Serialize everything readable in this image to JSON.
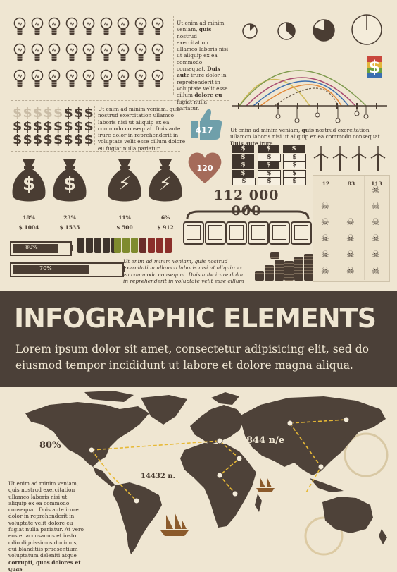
{
  "colors": {
    "paper": "#efe6d2",
    "ink": "#4a3d33",
    "banner": "#4b4038",
    "accent_green": "#7f9b4f",
    "heart": "#a56b5a",
    "route": "#e7b936"
  },
  "text_top_right": {
    "p1": "Ut enim ad minim veniam, ",
    "b1": "quis",
    "p2": " nostrud exercitation ullamco laboris nisi ut aliquip ex ea commodo consequat. ",
    "b2": "Duis aute",
    "p3": " irure dolor in reprehenderit in voluptate velit esse cillum ",
    "b3": "dolore eu",
    "p4": " fugiat nulla pariatur."
  },
  "text_dollars": "Ut enim ad minim veniam, quis nostrud exercitation ullamco laboris nisi ut aliquip ex ea commodo consequat. Duis aute irure dolor in reprehenderit in voluptate velit esse cillum dolore eu fugiat nulla pariatur.",
  "text_mid_right": {
    "p1": "Ut enim ad minim veniam, ",
    "b1": "quis",
    "p2": " nostrud exercitation ullamco laboris nisi ut aliquip ex ea commodo consequat. ",
    "b2": "Duis aute",
    "p3": " irure"
  },
  "text_italic": "Ut enim ad minim veniam, quis nostrud exercitation ullamco laboris nisi ut aliquip ex ea commodo consequat. Duis aute irure dolor in reprehenderit in voluptate velit esse cillum",
  "thumb_value": "417",
  "heart_value": "120",
  "big_number": "112 000 000",
  "bags": [
    {
      "pct": "18%",
      "amount": "$ 1004",
      "symbol": "$"
    },
    {
      "pct": "23%",
      "amount": "$ 1535",
      "symbol": "$"
    },
    {
      "pct": "11%",
      "amount": "$ 500",
      "symbol": "⚡"
    },
    {
      "pct": "6%",
      "amount": "$ 912",
      "symbol": "⚡"
    }
  ],
  "batteries": [
    {
      "label": "80%",
      "level": 0.8
    },
    {
      "label": "70%",
      "level": 0.7
    }
  ],
  "skull_columns": [
    "12",
    "83",
    "113"
  ],
  "dollar_icon": "$",
  "banner": {
    "title": "INFOGRAPHIC ELEMENTS",
    "subtitle": "Lorem ipsum dolor sit amet, consectetur adipisicing elit, sed do eiusmod tempor incididunt ut labore et dolore magna aliqua."
  },
  "map": {
    "label_left": "80%",
    "label_europe": "844 n/e",
    "label_south": "14432 n.",
    "side_text": {
      "p1": "Ut enim ad minim veniam, quis nostrud exercitation ullamco laboris nisi ut aliquip ex ea commodo consequat. Duis aute irure dolor in reprehenderit in voluptate velit dolore eu fugiat nulla pariatur. At vero eos et accusamus et iusto odio dignissimos ducimus, qui blanditiis praesentium voluptatum deleniti atque ",
      "b1": "corrupti, quos dolores et quas"
    }
  },
  "icons": {
    "bulb": "lightbulb-icon",
    "thumb": "thumbs-up-icon",
    "heart": "heart-icon",
    "ship": "ship-icon",
    "skull": "skull-crossbones-icon",
    "turbine": "wind-turbine-icon"
  }
}
